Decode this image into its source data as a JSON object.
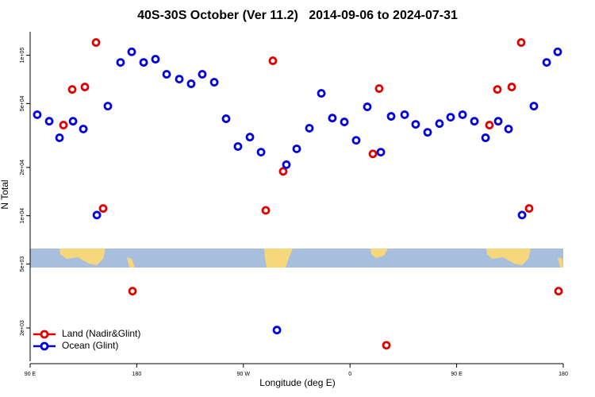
{
  "chart_data": {
    "type": "scatter",
    "title": "40S-30S October (Ver 11.2)   2014-09-06 to 2024-07-31",
    "x_label": "Longitude (deg E)",
    "y_label": "N Total",
    "xlim": [
      90,
      540
    ],
    "xticks": [
      {
        "value": 90,
        "label": "90 E"
      },
      {
        "value": 180,
        "label": "180"
      },
      {
        "value": 270,
        "label": "90 W"
      },
      {
        "value": 360,
        "label": "0"
      },
      {
        "value": 450,
        "label": "90 E"
      },
      {
        "value": 540,
        "label": "180"
      }
    ],
    "ylim": [
      1240,
      140000
    ],
    "y_scale": "log",
    "yticks": [
      {
        "value": 2000,
        "label": "2e+03"
      },
      {
        "value": 5000,
        "label": "5e+03"
      },
      {
        "value": 10000,
        "label": "1e+04"
      },
      {
        "value": 20000,
        "label": "2e+04"
      },
      {
        "value": 50000,
        "label": "5e+04"
      },
      {
        "value": 100000,
        "label": "1e+05"
      }
    ],
    "legend": "lower left",
    "series": [
      {
        "name": "Land (Nadir&Glint)",
        "color": "#e00000",
        "x": [
          118.1,
          125.5,
          136.2,
          145.6,
          151.6,
          176.4,
          288.9,
          294.9,
          303.6,
          379.3,
          384.6,
          390.7,
          477.7,
          484.4,
          496.5,
          504.5,
          511.2,
          536.0
        ],
        "values": [
          36700,
          61200,
          63400,
          120000,
          11100,
          3390,
          10800,
          92300,
          18900,
          24300,
          62000,
          1560,
          36700,
          61200,
          63400,
          120000,
          11100,
          3390
        ]
      },
      {
        "name": "Ocean (Glint)",
        "color": "#0000e0",
        "x": [
          96.0,
          106.1,
          114.8,
          126.2,
          134.9,
          146.3,
          155.6,
          166.3,
          175.7,
          185.8,
          195.8,
          205.2,
          215.9,
          225.9,
          235.3,
          245.4,
          255.4,
          265.4,
          275.5,
          284.9,
          298.3,
          306.3,
          315.0,
          325.7,
          335.8,
          345.1,
          355.2,
          365.2,
          374.6,
          386.0,
          394.7,
          406.1,
          415.4,
          425.5,
          435.5,
          444.9,
          455.0,
          465.0,
          474.4,
          485.1,
          493.8,
          505.2,
          515.2,
          526.0,
          535.3
        ],
        "values": [
          42600,
          38800,
          30600,
          38800,
          34700,
          10100,
          48200,
          90200,
          105000,
          90200,
          94500,
          76100,
          71000,
          66400,
          76100,
          67900,
          40200,
          27000,
          30900,
          24900,
          1940,
          20800,
          26100,
          35100,
          57900,
          40600,
          38400,
          29500,
          47700,
          24900,
          41600,
          42600,
          37100,
          33100,
          37500,
          41100,
          42600,
          38800,
          30600,
          38800,
          34700,
          10100,
          48200,
          90200,
          105000
        ]
      }
    ]
  }
}
